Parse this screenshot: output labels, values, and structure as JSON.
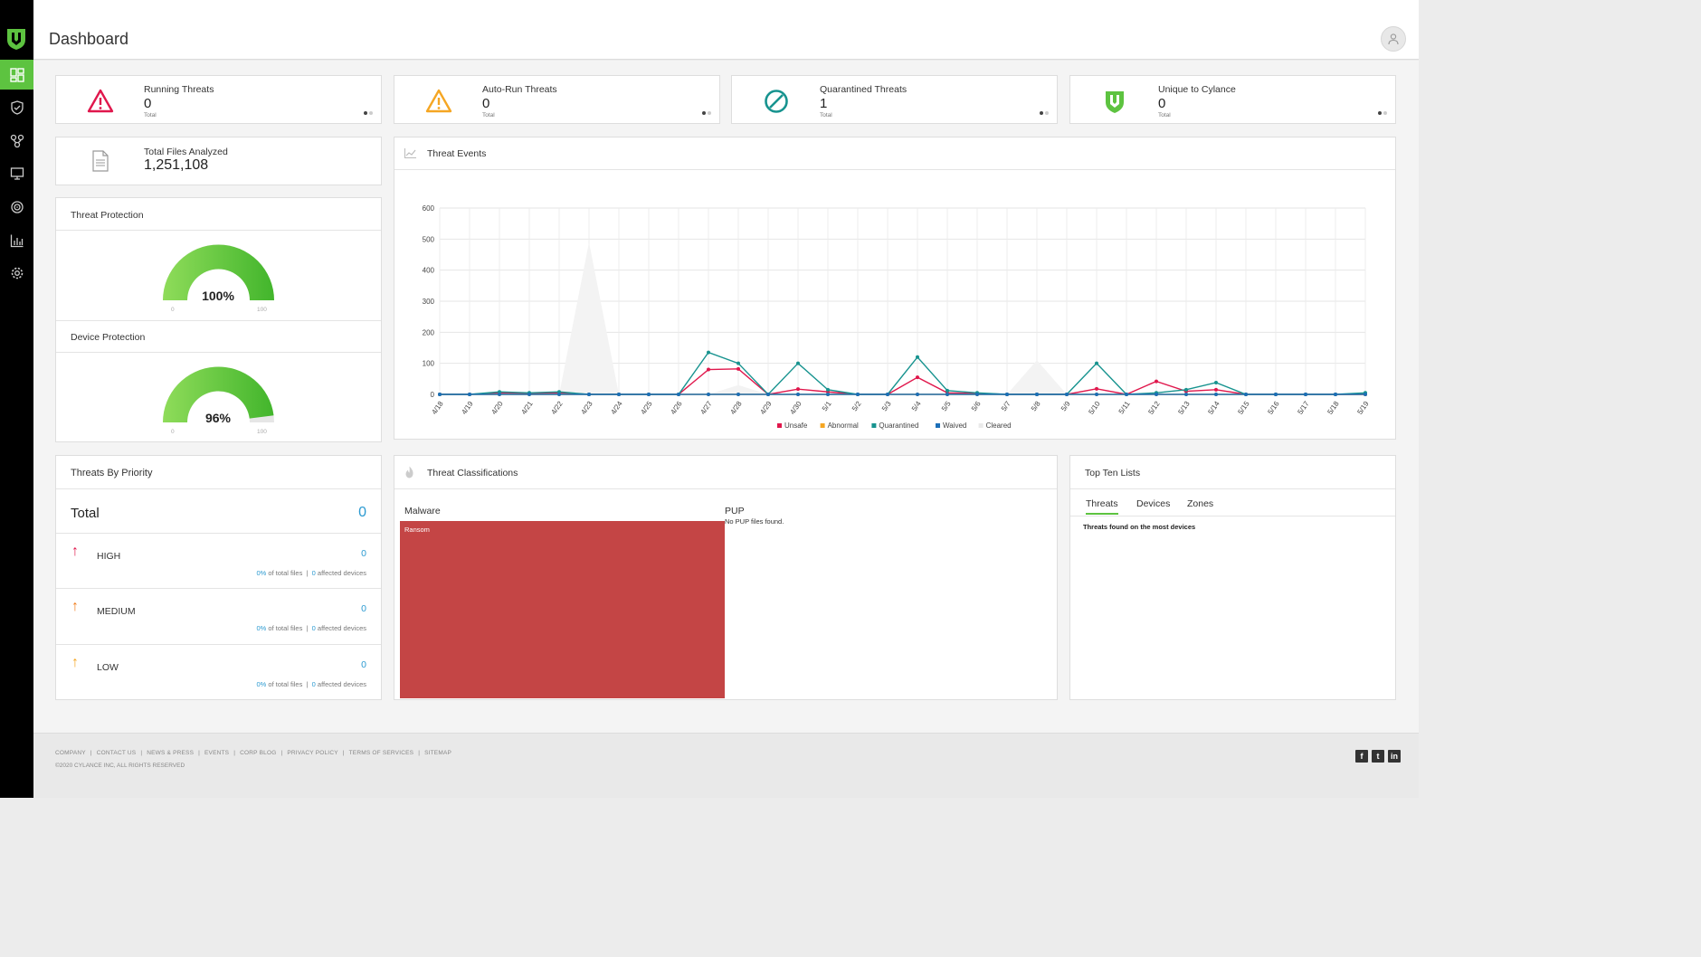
{
  "header": {
    "title": "Dashboard"
  },
  "stats": [
    {
      "label": "Running Threats",
      "value": "0",
      "sub": "Total",
      "icon": "warning-red-icon"
    },
    {
      "label": "Auto-Run Threats",
      "value": "0",
      "sub": "Total",
      "icon": "warning-orange-icon"
    },
    {
      "label": "Quarantined Threats",
      "value": "1",
      "sub": "Total",
      "icon": "quarantine-icon"
    },
    {
      "label": "Unique to Cylance",
      "value": "0",
      "sub": "Total",
      "icon": "cylance-shield-icon"
    }
  ],
  "files": {
    "label": "Total Files Analyzed",
    "value": "1,251,108"
  },
  "threat_protection": {
    "title": "Threat Protection",
    "value": "100%",
    "percent": 100,
    "min": "0",
    "max": "100"
  },
  "device_protection": {
    "title": "Device Protection",
    "value": "96%",
    "percent": 96,
    "min": "0",
    "max": "100"
  },
  "threat_events": {
    "title": "Threat Events"
  },
  "chart_data": {
    "type": "line",
    "title": "Threat Events",
    "categories": [
      "4/18",
      "4/19",
      "4/20",
      "4/21",
      "4/22",
      "4/23",
      "4/24",
      "4/25",
      "4/26",
      "4/27",
      "4/28",
      "4/29",
      "4/30",
      "5/1",
      "5/2",
      "5/3",
      "5/4",
      "5/5",
      "5/6",
      "5/7",
      "5/8",
      "5/9",
      "5/10",
      "5/11",
      "5/12",
      "5/13",
      "5/14",
      "5/15",
      "5/16",
      "5/17",
      "5/18",
      "5/19"
    ],
    "ylim": [
      0,
      600
    ],
    "yticks": [
      0,
      100,
      200,
      300,
      400,
      500,
      600
    ],
    "grid": true,
    "legend": "bottom",
    "series": [
      {
        "name": "Unsafe",
        "color": "#e0174c",
        "values": [
          0,
          0,
          5,
          3,
          5,
          0,
          0,
          0,
          0,
          80,
          82,
          0,
          17,
          8,
          0,
          0,
          55,
          5,
          3,
          0,
          0,
          0,
          18,
          0,
          42,
          10,
          15,
          0,
          0,
          0,
          0,
          0
        ]
      },
      {
        "name": "Abnormal",
        "color": "#f5a623",
        "values": [
          0,
          0,
          0,
          0,
          0,
          0,
          0,
          0,
          0,
          0,
          0,
          0,
          0,
          0,
          0,
          0,
          0,
          0,
          0,
          0,
          0,
          0,
          0,
          0,
          0,
          0,
          0,
          0,
          0,
          0,
          0,
          0
        ]
      },
      {
        "name": "Quarantined",
        "color": "#17938f",
        "values": [
          0,
          0,
          8,
          5,
          8,
          0,
          0,
          0,
          0,
          135,
          100,
          0,
          100,
          15,
          0,
          0,
          120,
          12,
          5,
          0,
          0,
          0,
          100,
          0,
          5,
          15,
          38,
          0,
          0,
          0,
          0,
          5
        ]
      },
      {
        "name": "Waived",
        "color": "#1c6fb8",
        "values": [
          0,
          0,
          0,
          0,
          0,
          0,
          0,
          0,
          0,
          0,
          0,
          0,
          0,
          0,
          0,
          0,
          0,
          0,
          0,
          0,
          0,
          0,
          0,
          0,
          0,
          0,
          0,
          0,
          0,
          0,
          0,
          0
        ]
      },
      {
        "name": "Cleared",
        "color": "#eaeaea",
        "values": [
          0,
          0,
          0,
          0,
          0,
          490,
          0,
          0,
          0,
          0,
          30,
          0,
          0,
          0,
          0,
          0,
          0,
          0,
          0,
          0,
          110,
          0,
          0,
          0,
          0,
          0,
          0,
          0,
          0,
          0,
          0,
          0
        ]
      }
    ]
  },
  "priority": {
    "title": "Threats By Priority",
    "total_label": "Total",
    "total_value": "0",
    "rows": [
      {
        "label": "HIGH",
        "count": "0",
        "pct": "0%",
        "pct_text": "of total files",
        "sep": "|",
        "devices": "0",
        "devices_text": "affected devices",
        "color": "#e0174c"
      },
      {
        "label": "MEDIUM",
        "count": "0",
        "pct": "0%",
        "pct_text": "of total files",
        "sep": "|",
        "devices": "0",
        "devices_text": "affected devices",
        "color": "#f07c1b"
      },
      {
        "label": "LOW",
        "count": "0",
        "pct": "0%",
        "pct_text": "of total files",
        "sep": "|",
        "devices": "0",
        "devices_text": "affected devices",
        "color": "#f5a623"
      }
    ]
  },
  "classifications": {
    "title": "Threat Classifications",
    "malware_label": "Malware",
    "ransom_label": "Ransom",
    "pup_label": "PUP",
    "pup_empty": "No PUP files found."
  },
  "top_ten": {
    "title": "Top Ten Lists",
    "tabs": [
      "Threats",
      "Devices",
      "Zones"
    ],
    "subtitle": "Threats found on the most devices"
  },
  "footer": {
    "links": [
      "COMPANY",
      "CONTACT US",
      "NEWS & PRESS",
      "EVENTS",
      "CORP BLOG",
      "PRIVACY POLICY",
      "TERMS OF SERVICES",
      "SITEMAP"
    ],
    "copyright": "©2020 CYLANCE INC, ALL RIGHTS RESERVED",
    "social": [
      "f",
      "t",
      "in"
    ]
  },
  "colors": {
    "accent": "#5dc340",
    "link": "#2b9ad1",
    "ransom": "#c44545"
  }
}
